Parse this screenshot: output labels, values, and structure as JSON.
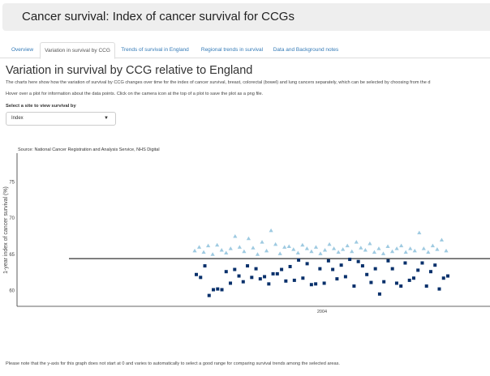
{
  "app": {
    "title": "Cancer survival: Index of cancer survival for CCGs"
  },
  "tabs": [
    {
      "label": "Overview",
      "active": false
    },
    {
      "label": "Variation in survival by CCG",
      "active": true
    },
    {
      "label": "Trends of survival in England",
      "active": false
    },
    {
      "label": "Regional trends in survival",
      "active": false
    },
    {
      "label": "Data and Background notes",
      "active": false
    }
  ],
  "main": {
    "title": "Variation in survival by CCG relative to England",
    "description_1": "The charts here show how the variation of survival by CCG changes over time for the index of cancer survival, breast, colorectal (bowel) and lung cancers separately, which can be selected by choosing from the d",
    "description_2": "Hover over a plot for information about the data points. Click on the camera icon at the top of a plot to save the plot as a png file.",
    "select_label": "Select a site to view survival by",
    "select_value": "Index",
    "footnote": "Please note that the y-axis for this graph does not start at 0 and varies to automatically to select a good range for comparing survival trends among the selected areas."
  },
  "colors": {
    "accent_link": "#337ab7",
    "header_bg": "#eeeeee",
    "square_series": "#08306b",
    "triangle_series": "#9ecae1",
    "england_line": "#000000"
  },
  "chart_data": {
    "type": "scatter",
    "source_text": "Source: National Cancer Registration and Analysis Service, NHS Digital",
    "ylabel": "1-year index of cancer survival (%)",
    "xlabel": "",
    "x_tick_labels": [
      "2004"
    ],
    "y_ticks": [
      60,
      65,
      70,
      75
    ],
    "ylim": [
      57.8,
      79
    ],
    "england_reference": 64.4,
    "grid": false,
    "series": [
      {
        "marker": "triangle",
        "values": [
          65.5,
          66.0,
          65.3,
          66.2,
          65.0,
          66.3,
          65.6,
          65.2,
          65.8,
          67.5,
          66.0,
          65.4,
          67.2,
          65.9,
          65.0,
          66.7,
          65.5,
          68.3,
          66.4,
          65.1,
          66.0,
          66.1,
          65.7,
          65.2,
          66.3,
          65.8,
          65.4,
          66.0,
          65.1,
          65.6,
          66.4,
          65.8,
          65.3,
          65.7,
          66.2,
          65.4,
          66.7,
          65.9,
          65.6,
          66.5,
          65.3,
          65.8,
          65.1,
          66.1,
          65.4,
          65.8,
          66.2,
          65.3,
          65.8,
          65.5,
          68.0,
          65.8,
          65.3,
          66.2,
          65.7,
          67.0,
          65.5
        ]
      },
      {
        "marker": "square",
        "values": [
          62.2,
          61.8,
          63.4,
          59.3,
          60.1,
          60.2,
          60.1,
          62.6,
          61.0,
          62.9,
          62.0,
          61.2,
          63.4,
          61.8,
          63.0,
          61.6,
          61.9,
          60.9,
          62.3,
          62.3,
          62.9,
          61.3,
          63.3,
          61.4,
          64.2,
          61.7,
          63.7,
          60.8,
          60.9,
          63.0,
          61.0,
          64.1,
          62.9,
          61.6,
          63.5,
          61.9,
          64.3,
          60.6,
          64.0,
          63.4,
          62.2,
          61.1,
          63.0,
          59.5,
          61.2,
          64.1,
          63.0,
          61.0,
          60.6,
          63.8,
          61.4,
          61.7,
          62.8,
          63.8,
          60.6,
          62.6,
          63.5,
          60.2,
          61.7,
          62.0
        ]
      }
    ]
  }
}
